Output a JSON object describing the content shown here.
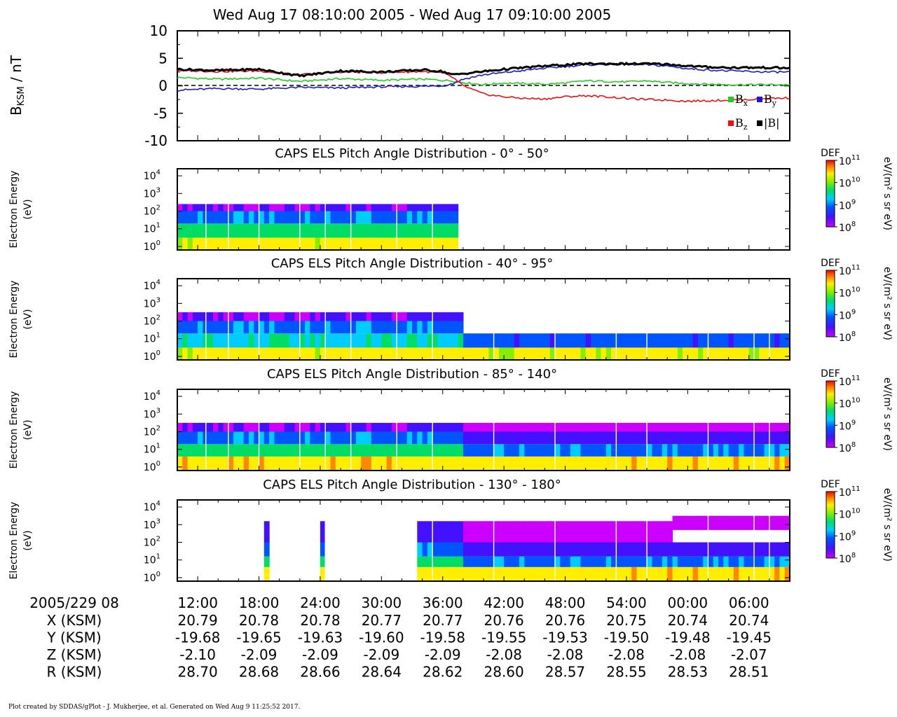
{
  "header": {
    "title": "Wed Aug 17 08:10:00 2005 - Wed Aug 17 09:10:00 2005"
  },
  "mag": {
    "ylabel_base": "B",
    "ylabel_sub": "KSM",
    "ylabel_unit": " / nT",
    "yticks": [
      "10",
      "5",
      "0",
      "-5",
      "-10"
    ],
    "legend": {
      "bx_base": "B",
      "bx_sub": "x",
      "by_base": "B",
      "by_sub": "y",
      "bz_base": "B",
      "bz_sub": "z",
      "bmag": "|B|"
    }
  },
  "spectrogram": {
    "ylabel": "Electron Energy",
    "yunit": "(eV)",
    "energy_ticks": [
      "10",
      "10",
      "10",
      "10",
      "10"
    ],
    "energy_exps": [
      "4",
      "3",
      "2",
      "1",
      "0"
    ],
    "colorbar": {
      "label": "DEF",
      "unit": "eV/(m² s sr eV)",
      "ticks": [
        "10",
        "10",
        "10",
        "10"
      ],
      "exps": [
        "11",
        "10",
        "9",
        "8"
      ]
    },
    "panels": [
      {
        "title": "CAPS ELS Pitch Angle Distribution - 0° - 50°"
      },
      {
        "title": "CAPS ELS Pitch Angle Distribution - 40° - 95°"
      },
      {
        "title": "CAPS ELS Pitch Angle Distribution - 85° - 140°"
      },
      {
        "title": "CAPS ELS Pitch Angle Distribution - 130° - 180°"
      }
    ]
  },
  "ephemeris": {
    "date_label": "2005/229 08",
    "row_labels": [
      "X (KSM)",
      "Y (KSM)",
      "Z (KSM)",
      "R (KSM)"
    ],
    "times": [
      "12:00",
      "18:00",
      "24:00",
      "30:00",
      "36:00",
      "42:00",
      "48:00",
      "54:00",
      "00:00",
      "06:00"
    ],
    "x": [
      "20.79",
      "20.78",
      "20.78",
      "20.77",
      "20.77",
      "20.76",
      "20.76",
      "20.75",
      "20.74",
      "20.74"
    ],
    "y": [
      "-19.68",
      "-19.65",
      "-19.63",
      "-19.60",
      "-19.58",
      "-19.55",
      "-19.53",
      "-19.50",
      "-19.48",
      "-19.45"
    ],
    "z": [
      "-2.10",
      "-2.09",
      "-2.09",
      "-2.09",
      "-2.09",
      "-2.08",
      "-2.08",
      "-2.08",
      "-2.08",
      "-2.07"
    ],
    "r": [
      "28.70",
      "28.68",
      "28.66",
      "28.64",
      "28.62",
      "28.60",
      "28.57",
      "28.55",
      "28.53",
      "28.51"
    ]
  },
  "footer": {
    "text": "Plot created by SDDAS/gPlot - J. Mukherjee, et al.  Generated on Wed Aug 9 11:25:52 2017."
  },
  "chart_data": [
    {
      "type": "line",
      "ylabel": "BKSM / nT",
      "ylim": [
        -10,
        10
      ],
      "xlim_minutes_after_0800": [
        10,
        70
      ],
      "series": [
        {
          "name": "Bx",
          "color": "#22cc22",
          "x": [
            10,
            14,
            18,
            22,
            26,
            30,
            34,
            36,
            37,
            38,
            40,
            42,
            44,
            46,
            48,
            50,
            52,
            54,
            56,
            58,
            60,
            62,
            64,
            66,
            68,
            70
          ],
          "values": [
            1.5,
            1.2,
            1.4,
            0.8,
            1.3,
            1.0,
            1.2,
            1.0,
            0.9,
            0.6,
            0.2,
            0.5,
            0.4,
            0.3,
            0.5,
            0.9,
            0.8,
            0.7,
            0.9,
            0.6,
            0.4,
            0.3,
            0.2,
            0.2,
            0.2,
            0.2
          ]
        },
        {
          "name": "By",
          "color": "#1a1acc",
          "x": [
            10,
            14,
            18,
            22,
            26,
            30,
            34,
            36,
            37,
            38,
            40,
            42,
            44,
            46,
            48,
            50,
            52,
            54,
            56,
            58,
            60,
            62,
            64,
            66,
            68,
            70
          ],
          "values": [
            -0.8,
            -0.5,
            -0.6,
            -0.3,
            -0.4,
            -0.2,
            -0.1,
            0.0,
            0.4,
            1.2,
            2.0,
            2.4,
            2.8,
            3.2,
            3.5,
            3.8,
            3.9,
            3.9,
            3.8,
            3.6,
            3.1,
            2.9,
            2.7,
            2.6,
            2.5,
            2.5
          ]
        },
        {
          "name": "Bz",
          "color": "#ee1111",
          "x": [
            10,
            14,
            18,
            22,
            26,
            30,
            34,
            36,
            37,
            38,
            40,
            42,
            44,
            46,
            48,
            50,
            52,
            54,
            56,
            58,
            60,
            62,
            64,
            66,
            68,
            70
          ],
          "values": [
            2.8,
            2.6,
            2.7,
            2.0,
            2.5,
            2.4,
            2.6,
            2.3,
            1.5,
            0.0,
            -1.5,
            -2.0,
            -2.3,
            -2.4,
            -2.0,
            -1.8,
            -2.0,
            -2.3,
            -2.5,
            -2.6,
            -2.8,
            -2.7,
            -2.6,
            -2.5,
            -2.3,
            -2.2
          ]
        },
        {
          "name": "|B|",
          "color": "#000000",
          "x": [
            10,
            14,
            18,
            22,
            26,
            30,
            34,
            36,
            37,
            38,
            40,
            42,
            44,
            46,
            48,
            50,
            52,
            54,
            56,
            58,
            60,
            62,
            64,
            66,
            68,
            70
          ],
          "values": [
            3.0,
            2.8,
            3.0,
            1.8,
            2.7,
            2.5,
            2.9,
            2.6,
            2.0,
            2.2,
            2.6,
            3.0,
            3.3,
            3.6,
            3.8,
            4.0,
            4.0,
            4.0,
            4.0,
            3.9,
            3.6,
            3.4,
            3.3,
            3.3,
            3.3,
            3.2
          ]
        }
      ]
    },
    {
      "type": "heatmap",
      "title": "CAPS ELS Pitch Angle Distribution - 0° - 50°",
      "ylabel": "Electron Energy (eV)",
      "ylim_log10_eV": [
        -0.2,
        4.4
      ],
      "colorbar_log10_DEF": [
        8,
        11
      ],
      "data_end_minute": 37.5,
      "bands": [
        {
          "log10_eV_range": [
            -0.2,
            0.5
          ],
          "log10_DEF": 10.5
        },
        {
          "log10_eV_range": [
            0.5,
            1.3
          ],
          "log10_DEF": 9.8
        },
        {
          "log10_eV_range": [
            1.3,
            2.0
          ],
          "log10_DEF": 9.2
        },
        {
          "log10_eV_range": [
            2.0,
            2.4
          ],
          "log10_DEF": 8.5
        }
      ]
    },
    {
      "type": "heatmap",
      "title": "CAPS ELS Pitch Angle Distribution - 40° - 95°",
      "ylabel": "Electron Energy (eV)",
      "ylim_log10_eV": [
        -0.2,
        4.4
      ],
      "colorbar_log10_DEF": [
        8,
        11
      ],
      "bands": [
        {
          "log10_eV_range": [
            -0.2,
            0.5
          ],
          "log10_DEF": 10.5
        },
        {
          "log10_eV_range": [
            0.5,
            1.3
          ],
          "log10_DEF": 9.6
        },
        {
          "log10_eV_range": [
            1.3,
            2.0
          ],
          "log10_DEF": 9.2
        },
        {
          "log10_eV_range": [
            2.0,
            2.5
          ],
          "log10_DEF": 8.5
        }
      ]
    },
    {
      "type": "heatmap",
      "title": "CAPS ELS Pitch Angle Distribution - 85° - 140°",
      "ylabel": "Electron Energy (eV)",
      "ylim_log10_eV": [
        -0.2,
        4.4
      ],
      "colorbar_log10_DEF": [
        8,
        11
      ],
      "bands": [
        {
          "log10_eV_range": [
            -0.2,
            0.6
          ],
          "log10_DEF": 10.6
        },
        {
          "log10_eV_range": [
            0.6,
            1.3
          ],
          "log10_DEF": 9.8
        },
        {
          "log10_eV_range": [
            1.3,
            2.0
          ],
          "log10_DEF": 9.2
        },
        {
          "log10_eV_range": [
            2.0,
            2.5
          ],
          "log10_DEF": 8.5
        }
      ]
    },
    {
      "type": "heatmap",
      "title": "CAPS ELS Pitch Angle Distribution - 130° - 180°",
      "ylabel": "Electron Energy (eV)",
      "ylim_log10_eV": [
        -0.2,
        4.4
      ],
      "colorbar_log10_DEF": [
        8,
        11
      ],
      "bands": [
        {
          "log10_eV_range": [
            -0.2,
            0.6
          ],
          "log10_DEF": 10.6
        },
        {
          "log10_eV_range": [
            0.6,
            1.2
          ],
          "log10_DEF": 9.8
        },
        {
          "log10_eV_range": [
            1.2,
            2.0
          ],
          "log10_DEF": 9.2
        },
        {
          "log10_eV_range": [
            2.0,
            3.2
          ],
          "log10_DEF": 8.6
        }
      ]
    }
  ]
}
